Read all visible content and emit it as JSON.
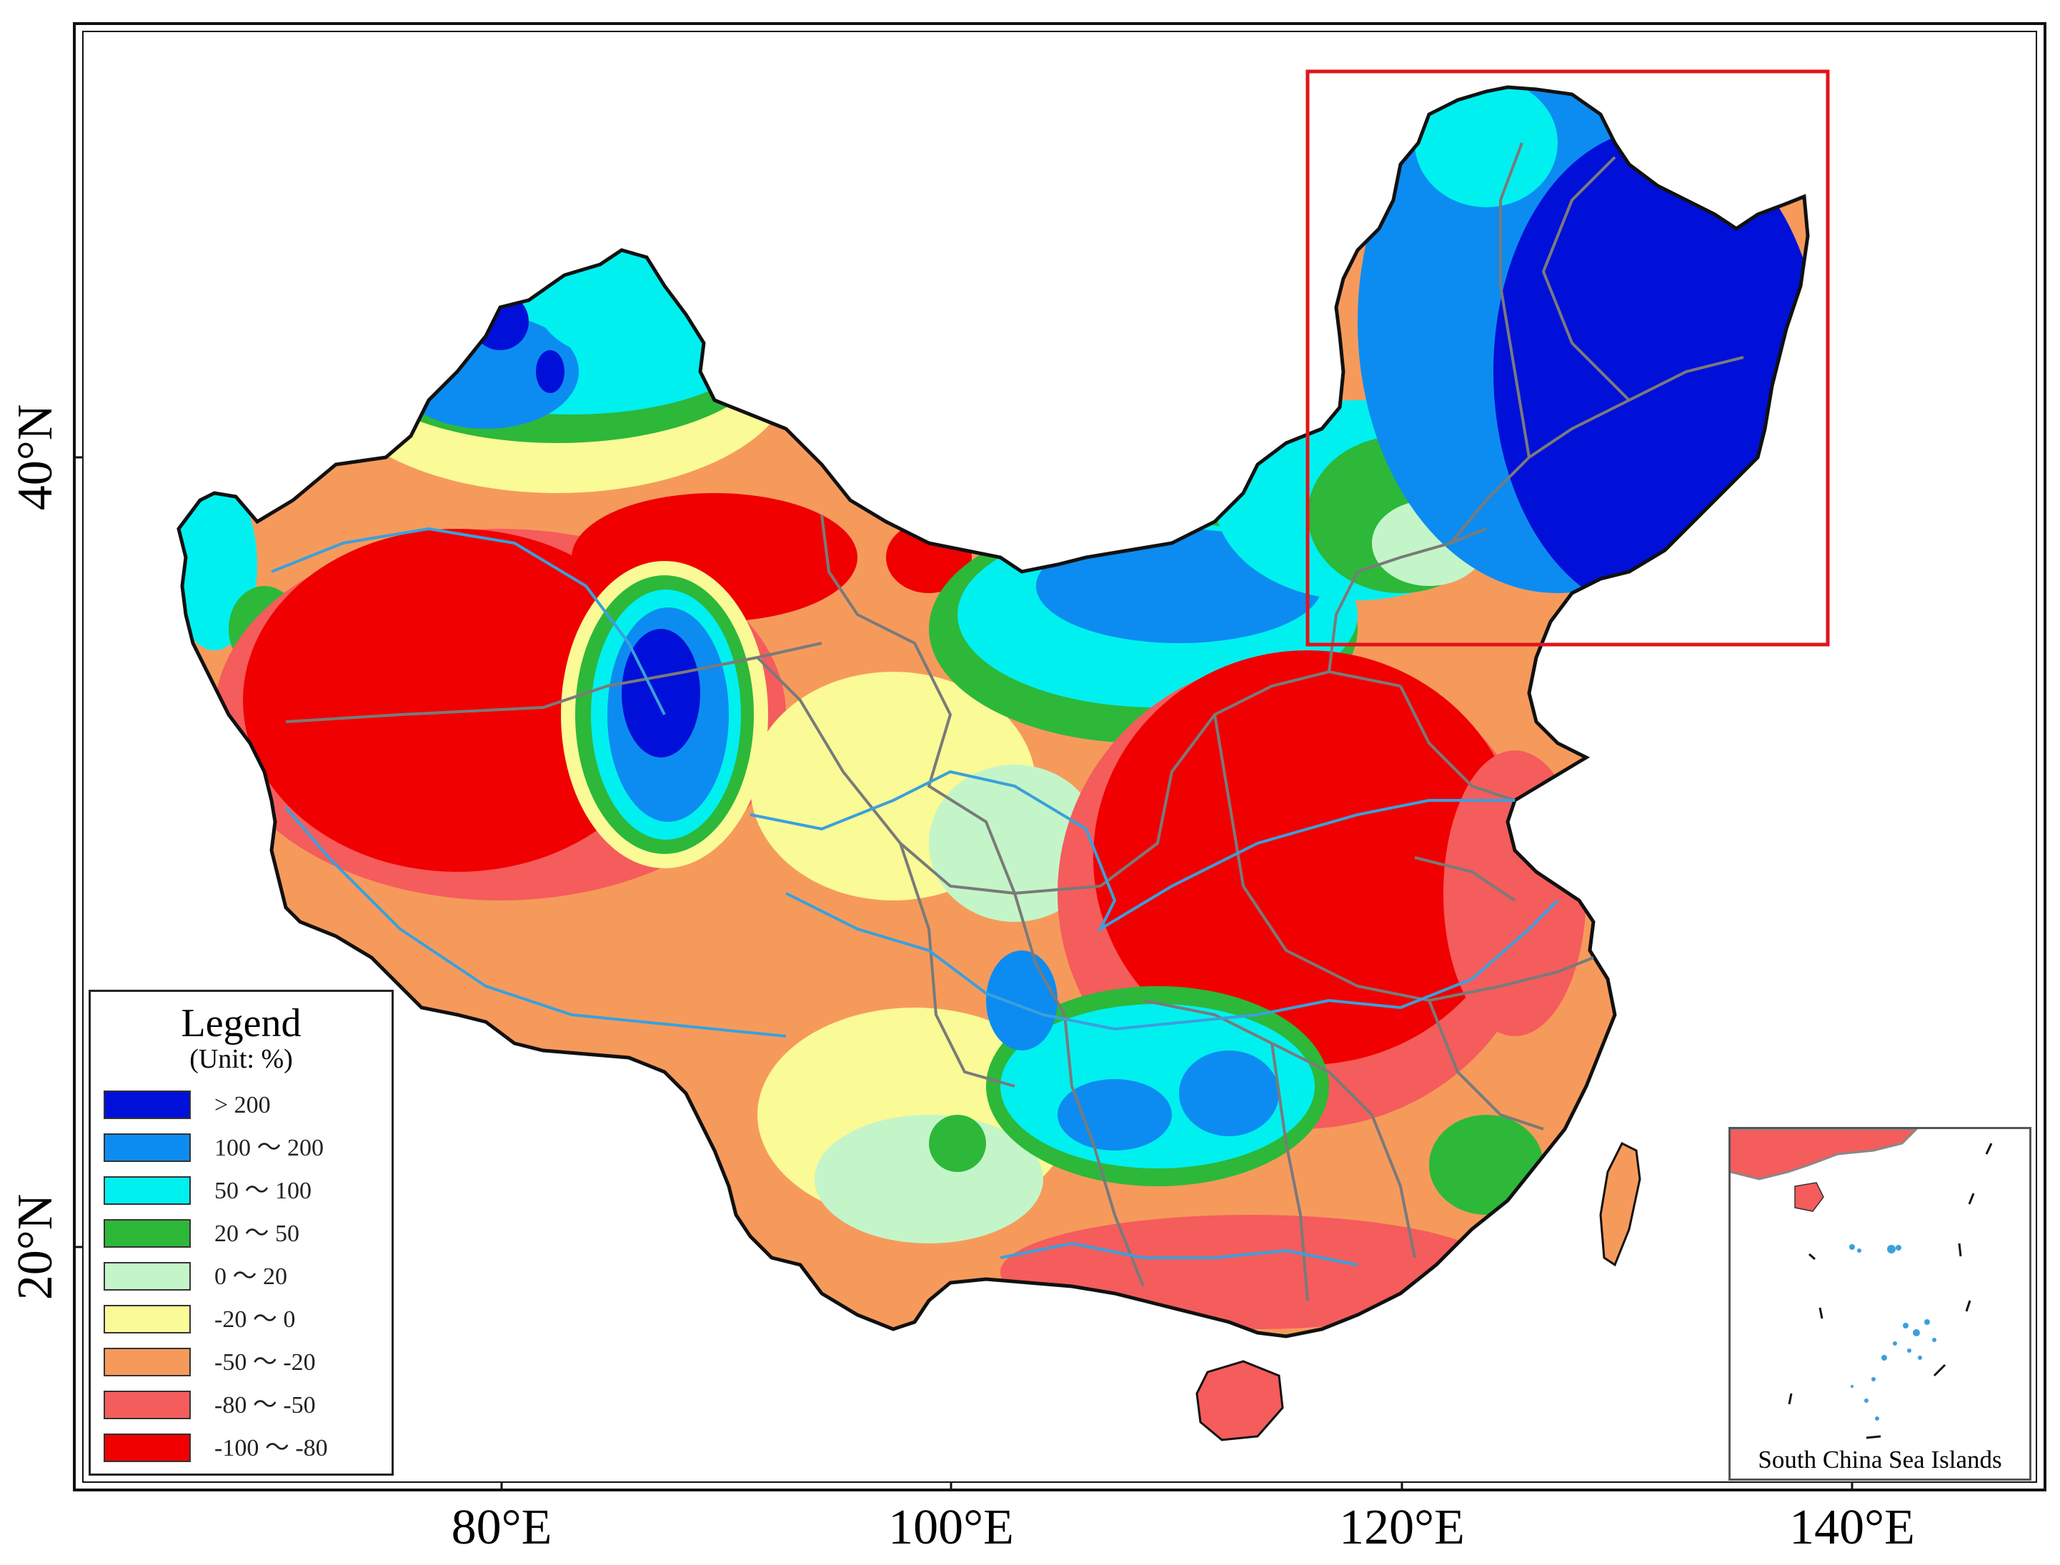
{
  "axes": {
    "x_ticks": [
      "80°E",
      "100°E",
      "120°E",
      "140°E"
    ],
    "y_ticks": [
      "40°N",
      "20°N"
    ]
  },
  "legend": {
    "title": "Legend",
    "unit": "(Unit: %)",
    "items": [
      {
        "label": "> 200",
        "color": "#0010d8"
      },
      {
        "label": "100 ～ 200",
        "color": "#0c8cf0"
      },
      {
        "label": "50 ～ 100",
        "color": "#00f0f0"
      },
      {
        "label": "20 ～ 50",
        "color": "#2db83a"
      },
      {
        "label": "0 ～ 20",
        "color": "#c4f5c8"
      },
      {
        "label": "-20 ～ 0",
        "color": "#fafa96"
      },
      {
        "label": "-50 ～ -20",
        "color": "#f69a5c"
      },
      {
        "label": "-80 ～ -50",
        "color": "#f55c5c"
      },
      {
        "label": "-100 ～ -80",
        "color": "#f00000"
      }
    ]
  },
  "inset": {
    "title": "South China Sea Islands"
  },
  "highlight_box_color": "#e0141c"
}
